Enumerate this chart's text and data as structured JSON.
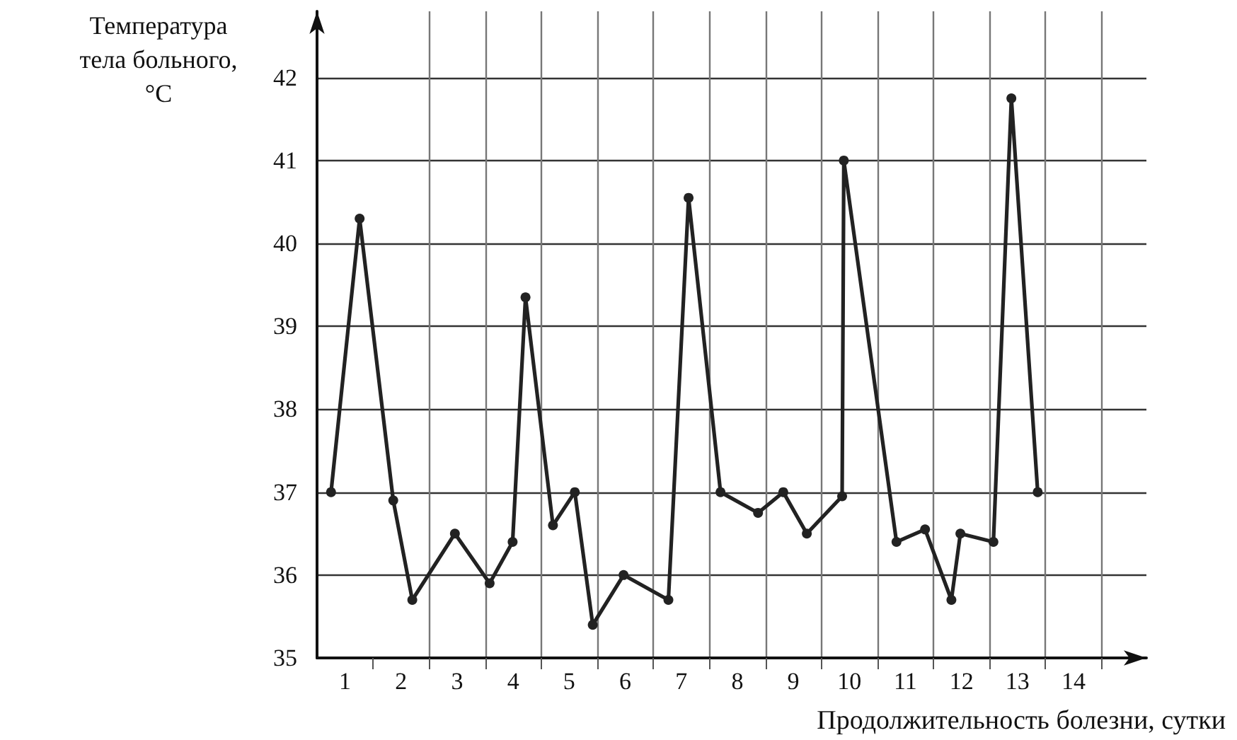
{
  "chart_data": {
    "type": "line",
    "xlabel": "Продолжительность болезни, сутки",
    "ylabel": "Температура\nтела больного,\n°C",
    "series": [
      {
        "color": "#222222",
        "x": [
          0.25,
          0.76,
          1.36,
          1.7,
          2.46,
          3.08,
          3.49,
          3.72,
          4.21,
          4.6,
          4.92,
          5.47,
          6.27,
          6.63,
          7.2,
          7.87,
          8.32,
          8.74,
          9.37,
          9.4,
          10.34,
          10.85,
          11.32,
          11.48,
          12.07,
          12.39,
          12.86
        ],
        "values": [
          37.0,
          40.3,
          36.9,
          35.7,
          36.5,
          35.9,
          36.4,
          39.35,
          36.6,
          37.0,
          35.4,
          36.0,
          35.7,
          40.55,
          37.0,
          36.75,
          37.0,
          36.5,
          36.95,
          41.0,
          36.4,
          36.55,
          35.7,
          36.5,
          36.4,
          41.75,
          37.0
        ]
      }
    ],
    "xlim": [
      0,
      14.8
    ],
    "xticks": [
      {
        "value": 0.5,
        "label": "1"
      },
      {
        "value": 1,
        "label": null
      },
      {
        "value": 1.5,
        "label": "2"
      },
      {
        "value": 2,
        "label": null
      },
      {
        "value": 2.5,
        "label": "3"
      },
      {
        "value": 3,
        "label": null
      },
      {
        "value": 3.5,
        "label": "4"
      },
      {
        "value": 4,
        "label": null
      },
      {
        "value": 4.5,
        "label": "5"
      },
      {
        "value": 5,
        "label": null
      },
      {
        "value": 5.5,
        "label": "6"
      },
      {
        "value": 6,
        "label": null
      },
      {
        "value": 6.5,
        "label": "7"
      },
      {
        "value": 7,
        "label": null
      },
      {
        "value": 7.5,
        "label": "8"
      },
      {
        "value": 8,
        "label": null
      },
      {
        "value": 8.5,
        "label": "9"
      },
      {
        "value": 9,
        "label": null
      },
      {
        "value": 9.5,
        "label": "10"
      },
      {
        "value": 10,
        "label": null
      },
      {
        "value": 10.5,
        "label": "11"
      },
      {
        "value": 11,
        "label": null
      },
      {
        "value": 11.5,
        "label": "12"
      },
      {
        "value": 12,
        "label": null
      },
      {
        "value": 12.5,
        "label": "13"
      },
      {
        "value": 13,
        "label": null
      },
      {
        "value": 13.5,
        "label": "14"
      },
      {
        "value": 14,
        "label": null
      }
    ],
    "ylim": [
      35,
      42.8
    ],
    "yticks": [
      35,
      36,
      37,
      38,
      39,
      40,
      41,
      42
    ],
    "grid": true,
    "marker": "circle",
    "line_style": "solid"
  }
}
